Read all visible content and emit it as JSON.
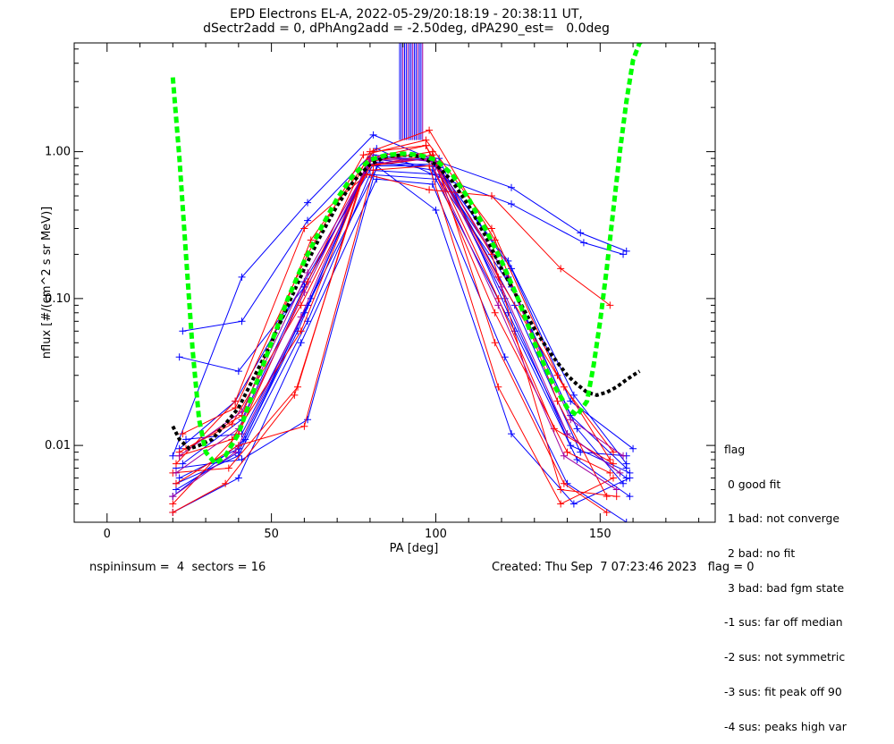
{
  "header": {
    "title_line1": "EPD Electrons EL-A, 2022-05-29/20:18:19 - 20:38:11 UT,",
    "title_line2": "dSectr2add = 0, dPhAng2add = -2.50deg, dPA290_est=   0.0deg"
  },
  "footer": {
    "left": "nspininsum =  4  sectors = 16",
    "right": "Created: Thu Sep  7 07:23:46 2023   flag = 0"
  },
  "legend": {
    "title": "flag",
    "items": [
      " 0 good fit",
      " 1 bad: not converge",
      " 2 bad: no fit",
      " 3 bad: bad fgm state",
      "-1 sus: far off median",
      "-2 sus: not symmetric",
      "-3 sus: fit peak off 90",
      "-4 sus: peaks high var"
    ]
  },
  "colors": {
    "red": "#ff0000",
    "blue": "#0000ff",
    "purple": "#a000a0",
    "green": "#00ff00",
    "black": "#000000"
  },
  "chart_data": {
    "type": "line",
    "xlabel": "PA [deg]",
    "ylabel": "nflux [#/(cm^2 s sr MeV)]",
    "xlim": [
      -10,
      185
    ],
    "ylim": [
      0.003,
      5.5
    ],
    "yscale": "log",
    "xticks": [
      0,
      50,
      100,
      150
    ],
    "yticks": [
      0.01,
      0.1,
      1.0
    ],
    "ytick_labels": [
      "0.01",
      "0.10",
      "1.00"
    ],
    "series": [
      {
        "color": "blue",
        "x": [
          20,
          41,
          61,
          81,
          101,
          123,
          144,
          158
        ],
        "y": [
          0.0085,
          0.14,
          0.45,
          1.3,
          0.85,
          0.57,
          0.28,
          0.21
        ]
      },
      {
        "color": "blue",
        "x": [
          23,
          41,
          61,
          82,
          99,
          123,
          145,
          157
        ],
        "y": [
          0.06,
          0.07,
          0.34,
          1.05,
          0.7,
          0.44,
          0.24,
          0.2
        ]
      },
      {
        "color": "blue",
        "x": [
          22,
          40,
          60,
          80,
          100,
          122,
          142,
          158
        ],
        "y": [
          0.04,
          0.032,
          0.12,
          0.8,
          0.8,
          0.18,
          0.022,
          0.0075
        ]
      },
      {
        "color": "blue",
        "x": [
          21,
          41,
          61,
          82,
          100,
          123,
          142,
          159
        ],
        "y": [
          0.007,
          0.008,
          0.015,
          0.8,
          0.4,
          0.012,
          0.004,
          0.006
        ]
      },
      {
        "color": "blue",
        "x": [
          21,
          40,
          58,
          80,
          101,
          122,
          140,
          158
        ],
        "y": [
          0.005,
          0.009,
          0.06,
          0.9,
          0.9,
          0.08,
          0.012,
          0.006
        ]
      },
      {
        "color": "blue",
        "x": [
          22,
          40,
          60,
          81,
          100,
          121,
          141,
          159
        ],
        "y": [
          0.006,
          0.0095,
          0.08,
          0.95,
          0.85,
          0.1,
          0.01,
          0.0065
        ]
      },
      {
        "color": "blue",
        "x": [
          20,
          42,
          61,
          83,
          99,
          123,
          143,
          157
        ],
        "y": [
          0.0045,
          0.011,
          0.09,
          0.85,
          0.75,
          0.12,
          0.013,
          0.0055
        ]
      },
      {
        "color": "blue",
        "x": [
          23,
          41,
          60,
          79,
          101,
          122,
          141,
          158
        ],
        "y": [
          0.0075,
          0.015,
          0.12,
          0.75,
          0.7,
          0.14,
          0.016,
          0.007
        ]
      },
      {
        "color": "blue",
        "x": [
          21,
          40,
          61,
          80,
          100,
          124,
          143,
          159
        ],
        "y": [
          0.0055,
          0.0085,
          0.07,
          0.7,
          0.65,
          0.06,
          0.008,
          0.0045
        ]
      },
      {
        "color": "blue",
        "x": [
          22,
          39,
          60,
          81,
          100,
          123,
          141,
          160
        ],
        "y": [
          0.0095,
          0.02,
          0.13,
          0.82,
          0.82,
          0.16,
          0.02,
          0.0095
        ]
      },
      {
        "color": "blue",
        "x": [
          20,
          40,
          59,
          82,
          99,
          121,
          140,
          158
        ],
        "y": [
          0.0035,
          0.006,
          0.05,
          0.65,
          0.6,
          0.04,
          0.0055,
          0.003
        ]
      },
      {
        "color": "blue",
        "x": [
          24,
          41,
          62,
          80,
          101,
          124,
          144,
          158
        ],
        "y": [
          0.011,
          0.012,
          0.1,
          0.9,
          0.78,
          0.09,
          0.009,
          0.0085
        ]
      },
      {
        "color": "red",
        "x": [
          20,
          40,
          61,
          80,
          98,
          118,
          137,
          152
        ],
        "y": [
          0.004,
          0.012,
          0.13,
          1.0,
          1.4,
          0.25,
          0.02,
          0.0045
        ]
      },
      {
        "color": "red",
        "x": [
          21,
          39,
          60,
          79,
          98,
          117,
          138,
          153
        ],
        "y": [
          0.0075,
          0.02,
          0.3,
          0.7,
          0.55,
          0.5,
          0.16,
          0.09
        ]
      },
      {
        "color": "red",
        "x": [
          22,
          38,
          59,
          80,
          97,
          119,
          136,
          154
        ],
        "y": [
          0.0085,
          0.011,
          0.06,
          0.9,
          1.1,
          0.1,
          0.013,
          0.0075
        ]
      },
      {
        "color": "red",
        "x": [
          20,
          37,
          58,
          79,
          99,
          118,
          139,
          152
        ],
        "y": [
          0.0065,
          0.007,
          0.025,
          0.85,
          1.0,
          0.05,
          0.0055,
          0.0035
        ]
      },
      {
        "color": "red",
        "x": [
          23,
          39,
          61,
          78,
          97,
          117,
          137,
          153
        ],
        "y": [
          0.012,
          0.018,
          0.2,
          0.95,
          1.2,
          0.3,
          0.03,
          0.008
        ]
      },
      {
        "color": "red",
        "x": [
          21,
          40,
          60,
          81,
          98,
          119,
          138,
          154
        ],
        "y": [
          0.0055,
          0.01,
          0.0135,
          0.75,
          0.8,
          0.025,
          0.004,
          0.006
        ]
      },
      {
        "color": "red",
        "x": [
          22,
          38,
          59,
          80,
          98,
          118,
          140,
          153
        ],
        "y": [
          0.009,
          0.014,
          0.09,
          0.8,
          0.9,
          0.08,
          0.009,
          0.0065
        ]
      },
      {
        "color": "red",
        "x": [
          20,
          36,
          57,
          79,
          99,
          117,
          138,
          155
        ],
        "y": [
          0.0035,
          0.0055,
          0.022,
          0.8,
          0.95,
          0.2,
          0.005,
          0.0045
        ]
      },
      {
        "color": "red",
        "x": [
          24,
          41,
          62,
          81,
          97,
          119,
          139,
          154
        ],
        "y": [
          0.0095,
          0.016,
          0.25,
          1.0,
          1.1,
          0.14,
          0.025,
          0.009
        ]
      },
      {
        "color": "purple",
        "x": [
          21,
          40,
          60,
          80,
          99,
          120,
          140,
          156
        ],
        "y": [
          0.0065,
          0.013,
          0.11,
          0.88,
          0.88,
          0.12,
          0.012,
          0.0065
        ]
      },
      {
        "color": "purple",
        "x": [
          22,
          41,
          61,
          81,
          100,
          121,
          141,
          157
        ],
        "y": [
          0.0085,
          0.017,
          0.15,
          0.92,
          0.86,
          0.15,
          0.015,
          0.0085
        ]
      },
      {
        "color": "purple",
        "x": [
          20,
          39,
          59,
          79,
          98,
          119,
          139,
          155
        ],
        "y": [
          0.0045,
          0.009,
          0.075,
          0.82,
          0.9,
          0.09,
          0.0085,
          0.005
        ]
      }
    ],
    "fit_green": {
      "x": [
        20,
        22,
        24,
        26,
        28,
        30,
        33,
        36,
        40,
        45,
        50,
        55,
        60,
        65,
        70,
        75,
        80,
        85,
        90,
        95,
        100,
        105,
        110,
        115,
        120,
        125,
        130,
        135,
        140,
        143,
        146,
        148,
        150,
        152,
        154,
        156,
        158,
        160,
        162,
        164
      ],
      "y": [
        3.2,
        0.9,
        0.2,
        0.045,
        0.015,
        0.009,
        0.0075,
        0.0085,
        0.012,
        0.025,
        0.05,
        0.1,
        0.18,
        0.3,
        0.48,
        0.7,
        0.88,
        0.95,
        0.97,
        0.95,
        0.88,
        0.7,
        0.48,
        0.3,
        0.18,
        0.1,
        0.05,
        0.028,
        0.018,
        0.016,
        0.02,
        0.035,
        0.07,
        0.16,
        0.4,
        1.0,
        2.2,
        4.2,
        5.5,
        6.0
      ]
    },
    "fit_black": {
      "x": [
        20,
        22,
        25,
        28,
        32,
        36,
        40,
        45,
        50,
        55,
        60,
        65,
        70,
        75,
        80,
        85,
        90,
        95,
        100,
        105,
        110,
        115,
        120,
        125,
        130,
        135,
        140,
        143,
        146,
        149,
        152,
        155,
        158,
        160,
        162
      ],
      "y": [
        0.0135,
        0.011,
        0.0095,
        0.01,
        0.011,
        0.014,
        0.018,
        0.03,
        0.05,
        0.09,
        0.16,
        0.27,
        0.43,
        0.63,
        0.82,
        0.93,
        0.95,
        0.93,
        0.82,
        0.63,
        0.43,
        0.27,
        0.16,
        0.1,
        0.062,
        0.042,
        0.03,
        0.026,
        0.023,
        0.022,
        0.023,
        0.025,
        0.028,
        0.03,
        0.032
      ]
    },
    "peak_bars_x": [
      89,
      89.5,
      90,
      90.5,
      91,
      91.5,
      92,
      92.5,
      93,
      93.5,
      94,
      94.5,
      95,
      95.5,
      96
    ],
    "peak_bars_y": [
      1.2,
      5.5
    ]
  }
}
